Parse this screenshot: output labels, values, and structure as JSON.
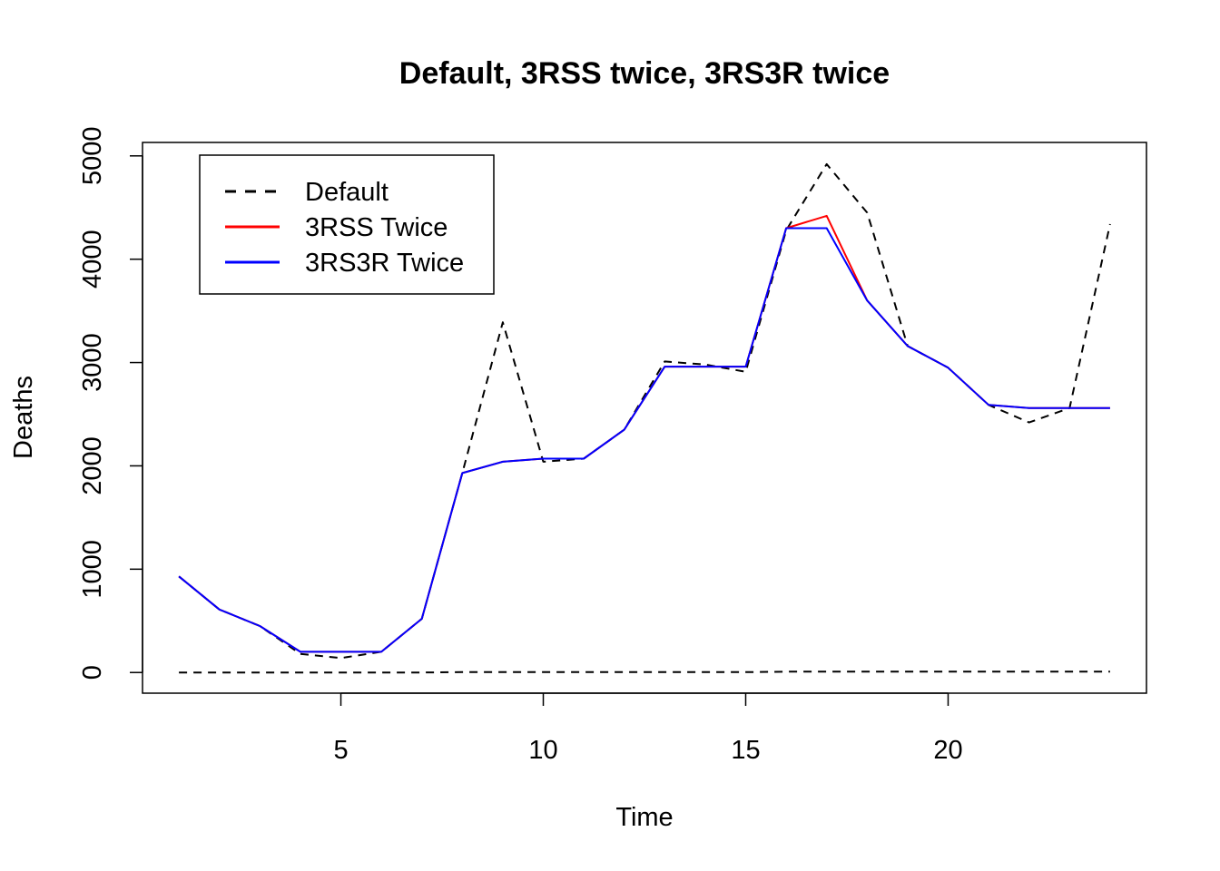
{
  "chart_data": {
    "type": "line",
    "title": "Default, 3RSS twice, 3RS3R twice",
    "xlabel": "Time",
    "ylabel": "Deaths",
    "xlim": [
      0.1,
      24.9
    ],
    "ylim": [
      -200,
      5130
    ],
    "xticks": [
      5,
      10,
      15,
      20
    ],
    "yticks": [
      0,
      1000,
      2000,
      3000,
      4000,
      5000
    ],
    "legend_position": "top-left",
    "x": [
      1,
      2,
      3,
      4,
      5,
      6,
      7,
      8,
      9,
      10,
      11,
      12,
      13,
      14,
      15,
      16,
      17,
      18,
      19,
      20,
      21,
      22,
      23,
      24
    ],
    "series": [
      {
        "name": "Default",
        "color": "#000000",
        "dash": "dashed",
        "values": [
          930,
          610,
          450,
          180,
          140,
          200,
          520,
          1930,
          3390,
          2040,
          2070,
          2350,
          3010,
          2980,
          2910,
          4280,
          4920,
          4450,
          3160,
          2950,
          2590,
          2420,
          2560,
          4340
        ]
      },
      {
        "name": "3RSS Twice",
        "color": "#ff0000",
        "dash": "solid",
        "values": [
          930,
          610,
          450,
          200,
          200,
          200,
          520,
          1930,
          2040,
          2070,
          2070,
          2350,
          2960,
          2960,
          2960,
          4300,
          4420,
          3600,
          3160,
          2950,
          2590,
          2560,
          2560,
          2560
        ]
      },
      {
        "name": "3RS3R Twice",
        "color": "#0000ff",
        "dash": "solid",
        "values": [
          930,
          610,
          450,
          200,
          200,
          200,
          520,
          1930,
          2040,
          2070,
          2070,
          2350,
          2960,
          2960,
          2960,
          4300,
          4300,
          3600,
          3160,
          2950,
          2590,
          2560,
          2560,
          2560
        ]
      }
    ],
    "extra_lines": [
      {
        "color": "#000000",
        "dash": "dashed",
        "values": [
          0,
          0,
          0,
          0,
          0,
          0,
          0,
          4,
          4,
          4,
          4,
          4,
          4,
          4,
          4,
          8,
          8,
          8,
          8,
          8,
          8,
          8,
          8,
          8
        ]
      }
    ]
  }
}
